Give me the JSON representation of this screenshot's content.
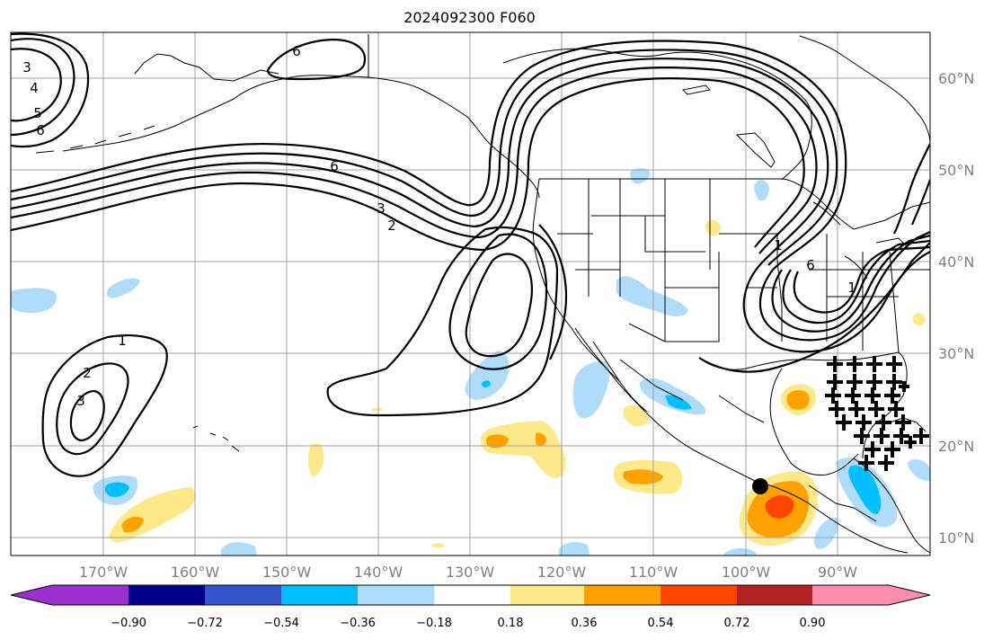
{
  "title": "2024092300 F060",
  "map": {
    "lat_labels": [
      "60°N",
      "50°N",
      "40°N",
      "30°N",
      "20°N",
      "10°N"
    ],
    "lon_labels": [
      "170°W",
      "160°W",
      "150°W",
      "140°W",
      "130°W",
      "120°W",
      "110°W",
      "100°W",
      "90°W"
    ],
    "contour_labels": [
      "6",
      "3",
      "4",
      "5",
      "6",
      "6",
      "3",
      "2",
      "1",
      "2",
      "3",
      "1",
      "6",
      "1"
    ]
  },
  "colorbar": {
    "colors": [
      "#9b30d0",
      "#00008b",
      "#3355cc",
      "#00bfff",
      "#aedcf9",
      "#ffffff",
      "#fde98a",
      "#ffa200",
      "#ff4500",
      "#b22222",
      "#ff8db0"
    ],
    "tick_labels": [
      "−0.90",
      "−0.72",
      "−0.54",
      "−0.36",
      "−0.18",
      "0.18",
      "0.36",
      "0.54",
      "0.72",
      "0.90"
    ]
  }
}
